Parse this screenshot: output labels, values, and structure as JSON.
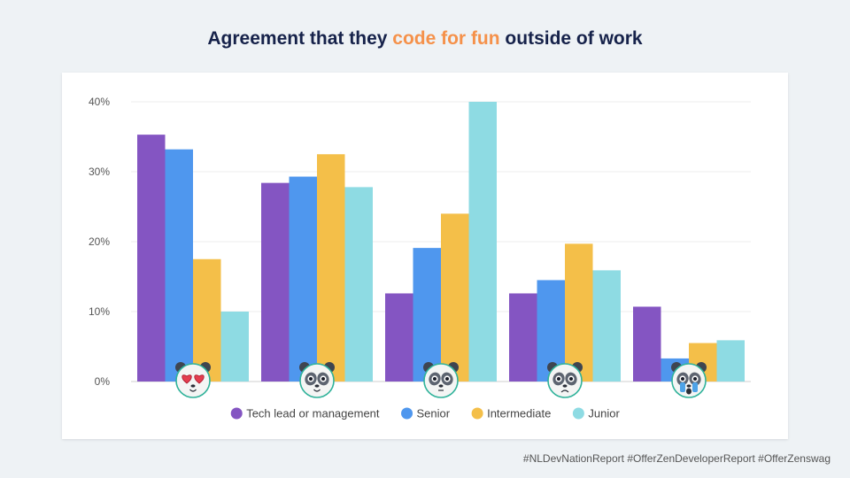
{
  "title": {
    "prefix": "Agreement that they ",
    "highlight": "code for fun",
    "suffix": " outside of work"
  },
  "footer": "#NLDevNationReport #OfferZenDeveloperReport #OfferZenswag",
  "colors": {
    "highlight": "#f5914a",
    "title": "#16224a"
  },
  "chart_data": {
    "type": "bar",
    "categories": [
      "love-eyes-panda",
      "happy-panda",
      "neutral-panda",
      "sad-panda",
      "crying-panda"
    ],
    "series": [
      {
        "name": "Tech lead or management",
        "color": "#8455c2",
        "values": [
          35.3,
          28.4,
          12.6,
          12.6,
          10.7
        ]
      },
      {
        "name": "Senior",
        "color": "#4f97ee",
        "values": [
          33.2,
          29.3,
          19.1,
          14.5,
          3.3
        ]
      },
      {
        "name": "Intermediate",
        "color": "#f4bf49",
        "values": [
          17.5,
          32.5,
          24.0,
          19.7,
          5.5
        ]
      },
      {
        "name": "Junior",
        "color": "#8edbe3",
        "values": [
          10.0,
          27.8,
          40.0,
          15.9,
          5.9
        ]
      }
    ],
    "yticks": [
      "0%",
      "10%",
      "20%",
      "30%",
      "40%"
    ],
    "ylim": [
      0,
      40
    ],
    "grid": true,
    "legend_position": "bottom"
  }
}
